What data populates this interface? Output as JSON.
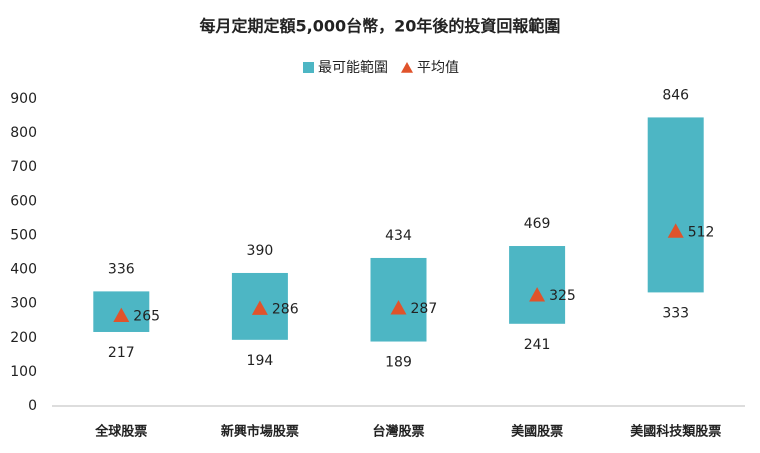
{
  "chart_data": {
    "type": "range-bar",
    "title": "每月定期定額5,000台幣，20年後的投資回報範圍",
    "categories": [
      "全球股票",
      "新興市場股票",
      "台灣股票",
      "美國股票",
      "美國科技類股票"
    ],
    "series": [
      {
        "name": "最可能範圍",
        "color": "#4db6c4",
        "low": [
          217,
          194,
          189,
          241,
          333
        ],
        "high": [
          336,
          390,
          434,
          469,
          846
        ]
      },
      {
        "name": "平均值",
        "color": "#e0532b",
        "values": [
          265,
          286,
          287,
          325,
          512
        ]
      }
    ],
    "ylim": [
      0,
      900
    ],
    "yticks": [
      0,
      100,
      200,
      300,
      400,
      500,
      600,
      700,
      800,
      900
    ],
    "legend": "top",
    "grid": false
  }
}
